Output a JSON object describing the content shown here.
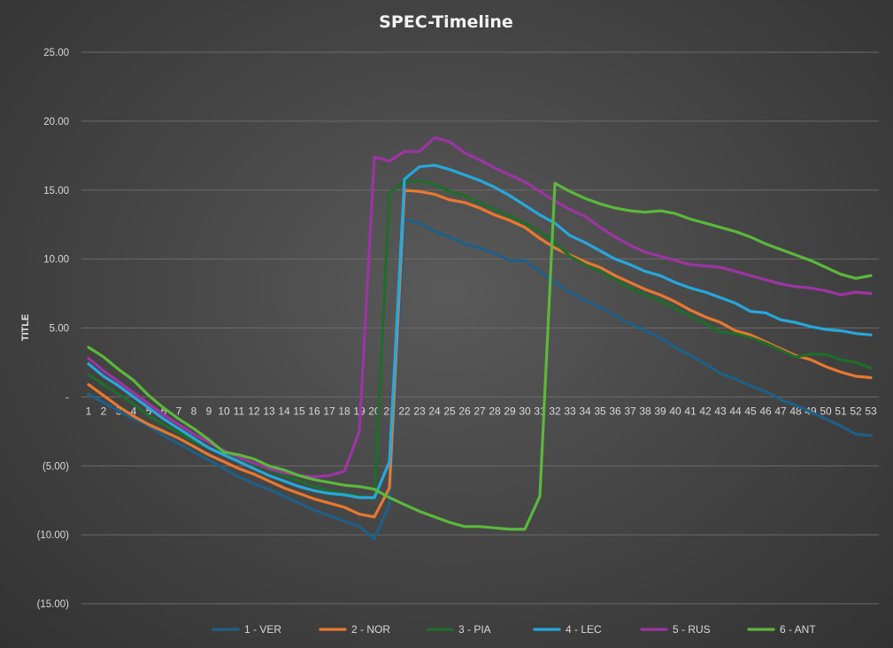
{
  "chart_data": {
    "type": "line",
    "title": "SPEC-Timeline",
    "xlabel": "",
    "ylabel": "TITLE",
    "ylim": [
      -15,
      25
    ],
    "yticks": [
      {
        "value": 25,
        "label": "25.00"
      },
      {
        "value": 20,
        "label": "20.00"
      },
      {
        "value": 15,
        "label": "15.00"
      },
      {
        "value": 10,
        "label": "10.00"
      },
      {
        "value": 5,
        "label": "5.00"
      },
      {
        "value": 0,
        "label": "-"
      },
      {
        "value": -5,
        "label": "(5.00)"
      },
      {
        "value": -10,
        "label": "(10.00)"
      },
      {
        "value": -15,
        "label": "(15.00)"
      }
    ],
    "grid": true,
    "legend_position": "bottom",
    "categories": [
      "1",
      "2",
      "3",
      "4",
      "5",
      "6",
      "7",
      "8",
      "9",
      "10",
      "11",
      "12",
      "13",
      "14",
      "15",
      "16",
      "17",
      "18",
      "19",
      "20",
      "21",
      "22",
      "23",
      "24",
      "25",
      "26",
      "27",
      "28",
      "29",
      "30",
      "31",
      "32",
      "33",
      "34",
      "35",
      "36",
      "37",
      "38",
      "39",
      "40",
      "41",
      "42",
      "43",
      "44",
      "45",
      "46",
      "47",
      "48",
      "49",
      "50",
      "51",
      "52",
      "53"
    ],
    "series": [
      {
        "name": "1 - VER",
        "color": "#1f5f86",
        "values": [
          0.2,
          -0.4,
          -1.0,
          -1.6,
          -2.1,
          -2.8,
          -3.4,
          -4.0,
          -4.6,
          -5.2,
          -5.8,
          -6.3,
          -6.7,
          -7.2,
          -7.7,
          -8.2,
          -8.6,
          -9.0,
          -9.4,
          -10.3,
          -7.8,
          12.9,
          12.6,
          12.0,
          11.6,
          11.1,
          10.8,
          10.4,
          9.9,
          9.9,
          9.1,
          8.3,
          7.6,
          7.0,
          6.5,
          5.9,
          5.3,
          4.8,
          4.3,
          3.6,
          3.0,
          2.4,
          1.7,
          1.3,
          0.8,
          0.4,
          -0.2,
          -0.6,
          -1.1,
          -1.6,
          -2.1,
          -2.7,
          -2.8
        ]
      },
      {
        "name": "2 - NOR",
        "color": "#e8782f",
        "values": [
          0.9,
          0.1,
          -0.7,
          -1.4,
          -2.0,
          -2.5,
          -3.0,
          -3.6,
          -4.2,
          -4.7,
          -5.2,
          -5.6,
          -6.1,
          -6.6,
          -7.0,
          -7.4,
          -7.7,
          -8.0,
          -8.5,
          -8.7,
          -6.6,
          15.0,
          14.9,
          14.7,
          14.3,
          14.1,
          13.7,
          13.2,
          12.8,
          12.3,
          11.5,
          10.8,
          10.3,
          9.8,
          9.4,
          8.8,
          8.3,
          7.8,
          7.4,
          6.9,
          6.3,
          5.8,
          5.4,
          4.8,
          4.5,
          4.0,
          3.5,
          3.0,
          2.7,
          2.2,
          1.8,
          1.5,
          1.4
        ]
      },
      {
        "name": "3 - PIA",
        "color": "#1f6d2b",
        "values": [
          1.6,
          0.9,
          0.2,
          -0.5,
          -1.4,
          -2.0,
          -2.6,
          -3.2,
          -3.7,
          -4.1,
          -4.5,
          -4.9,
          -5.3,
          -5.7,
          -6.1,
          -6.5,
          -6.8,
          -7.0,
          -7.2,
          -7.4,
          14.8,
          15.6,
          15.7,
          15.4,
          14.9,
          14.6,
          14.1,
          13.6,
          13.1,
          12.6,
          12.0,
          11.2,
          10.2,
          9.6,
          9.1,
          8.5,
          7.9,
          7.4,
          7.0,
          6.4,
          5.9,
          5.3,
          4.7,
          4.6,
          4.3,
          3.9,
          3.4,
          2.9,
          3.1,
          3.1,
          2.7,
          2.5,
          2.1
        ]
      },
      {
        "name": "4 - LEC",
        "color": "#26a7dd",
        "values": [
          2.4,
          1.5,
          0.8,
          0.0,
          -0.8,
          -1.6,
          -2.3,
          -3.0,
          -3.7,
          -4.2,
          -4.7,
          -5.2,
          -5.7,
          -6.1,
          -6.5,
          -6.8,
          -7.0,
          -7.1,
          -7.3,
          -7.3,
          -4.7,
          15.8,
          16.7,
          16.8,
          16.5,
          16.1,
          15.7,
          15.2,
          14.6,
          13.9,
          13.2,
          12.6,
          11.7,
          11.2,
          10.6,
          10.0,
          9.6,
          9.1,
          8.8,
          8.3,
          7.9,
          7.6,
          7.2,
          6.8,
          6.2,
          6.1,
          5.6,
          5.4,
          5.1,
          4.9,
          4.8,
          4.6,
          4.5
        ]
      },
      {
        "name": "5 - RUS",
        "color": "#9c35a3",
        "values": [
          2.8,
          1.9,
          1.1,
          0.3,
          -0.5,
          -1.3,
          -2.0,
          -2.7,
          -3.3,
          -3.9,
          -4.4,
          -4.8,
          -5.2,
          -5.5,
          -5.7,
          -5.8,
          -5.7,
          -5.4,
          -2.5,
          17.4,
          17.1,
          17.8,
          17.8,
          18.8,
          18.5,
          17.7,
          17.2,
          16.6,
          16.1,
          15.6,
          14.9,
          14.2,
          13.6,
          13.1,
          12.3,
          11.6,
          11.0,
          10.5,
          10.2,
          9.9,
          9.6,
          9.5,
          9.4,
          9.1,
          8.8,
          8.5,
          8.2,
          8.0,
          7.9,
          7.7,
          7.4,
          7.6,
          7.5
        ]
      },
      {
        "name": "6 - ANT",
        "color": "#5bb83b",
        "values": [
          3.6,
          2.9,
          2.0,
          1.2,
          0.1,
          -0.8,
          -1.6,
          -2.3,
          -3.1,
          -4.0,
          -4.2,
          -4.5,
          -5.0,
          -5.3,
          -5.7,
          -6.0,
          -6.2,
          -6.4,
          -6.5,
          -6.7,
          -7.3,
          -7.8,
          -8.3,
          -8.7,
          -9.1,
          -9.4,
          -9.4,
          -9.5,
          -9.6,
          -9.6,
          -7.2,
          15.5,
          14.9,
          14.4,
          14.0,
          13.7,
          13.5,
          13.4,
          13.5,
          13.3,
          12.9,
          12.6,
          12.3,
          12.0,
          11.6,
          11.1,
          10.7,
          10.3,
          9.9,
          9.4,
          8.9,
          8.6,
          8.8
        ]
      }
    ]
  }
}
